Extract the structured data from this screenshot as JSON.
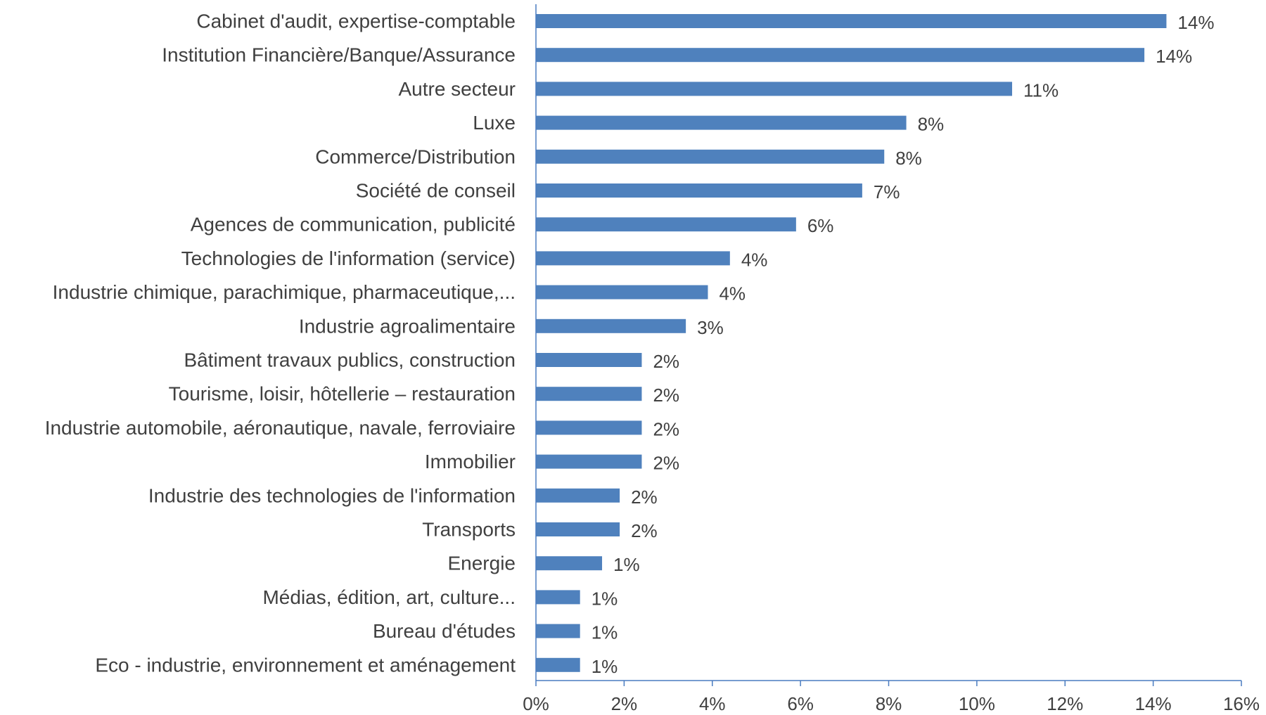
{
  "chart_data": {
    "type": "bar",
    "orientation": "horizontal",
    "categories": [
      "Cabinet d'audit, expertise-comptable",
      "Institution Financière/Banque/Assurance",
      "Autre secteur",
      "Luxe",
      "Commerce/Distribution",
      "Société de conseil",
      "Agences de communication, publicité",
      "Technologies de l'information (service)",
      "Industrie chimique, parachimique, pharmaceutique,...",
      "Industrie agroalimentaire",
      "Bâtiment travaux publics, construction",
      "Tourisme, loisir, hôtellerie – restauration",
      "Industrie automobile, aéronautique, navale, ferroviaire",
      "Immobilier",
      "Industrie des technologies de l'information",
      "Transports",
      "Energie",
      "Médias, édition, art, culture...",
      "Bureau d'études",
      "Eco - industrie, environnement et aménagement"
    ],
    "values": [
      14.3,
      13.8,
      10.8,
      8.4,
      7.9,
      7.4,
      5.9,
      4.4,
      3.9,
      3.4,
      2.4,
      2.4,
      2.4,
      2.4,
      1.9,
      1.9,
      1.5,
      1.0,
      1.0,
      1.0
    ],
    "data_labels": [
      "14%",
      "14%",
      "11%",
      "8%",
      "8%",
      "7%",
      "6%",
      "4%",
      "4%",
      "3%",
      "2%",
      "2%",
      "2%",
      "2%",
      "2%",
      "2%",
      "1%",
      "1%",
      "1%",
      "1%"
    ],
    "xlim": [
      0,
      16
    ],
    "x_ticks": [
      0,
      2,
      4,
      6,
      8,
      10,
      12,
      14,
      16
    ],
    "x_tick_labels": [
      "0%",
      "2%",
      "4%",
      "6%",
      "8%",
      "10%",
      "12%",
      "14%",
      "16%"
    ],
    "title": "",
    "xlabel": "",
    "ylabel": "",
    "grid": false,
    "legend": "none",
    "bar_color": "#4f81bd",
    "axis_color": "#4a7cc0",
    "text_color": "#404040"
  }
}
